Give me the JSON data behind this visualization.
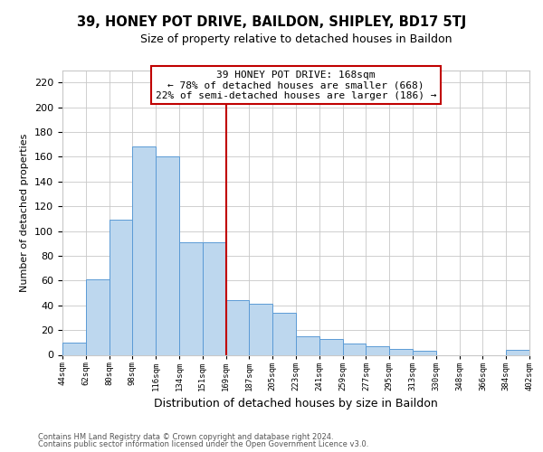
{
  "title": "39, HONEY POT DRIVE, BAILDON, SHIPLEY, BD17 5TJ",
  "subtitle": "Size of property relative to detached houses in Baildon",
  "xlabel": "Distribution of detached houses by size in Baildon",
  "ylabel": "Number of detached properties",
  "footnote1": "Contains HM Land Registry data © Crown copyright and database right 2024.",
  "footnote2": "Contains public sector information licensed under the Open Government Licence v3.0.",
  "bar_labels": [
    "44sqm",
    "62sqm",
    "80sqm",
    "98sqm",
    "116sqm",
    "134sqm",
    "151sqm",
    "169sqm",
    "187sqm",
    "205sqm",
    "223sqm",
    "241sqm",
    "259sqm",
    "277sqm",
    "295sqm",
    "313sqm",
    "330sqm",
    "348sqm",
    "366sqm",
    "384sqm",
    "402sqm"
  ],
  "bar_values": [
    10,
    61,
    109,
    168,
    160,
    91,
    91,
    44,
    41,
    34,
    15,
    13,
    9,
    7,
    5,
    3,
    0,
    0,
    0,
    4
  ],
  "bar_color": "#bdd7ee",
  "bar_edge_color": "#5b9bd5",
  "vline_index": 7,
  "vline_color": "#c00000",
  "annotation_line1": "39 HONEY POT DRIVE: 168sqm",
  "annotation_line2": "← 78% of detached houses are smaller (668)",
  "annotation_line3": "22% of semi-detached houses are larger (186) →",
  "annotation_box_color": "#ffffff",
  "annotation_box_edge": "#c00000",
  "ylim": [
    0,
    230
  ],
  "yticks": [
    0,
    20,
    40,
    60,
    80,
    100,
    120,
    140,
    160,
    180,
    200,
    220
  ],
  "background_color": "#ffffff",
  "grid_color": "#c8c8c8",
  "title_fontsize": 10.5,
  "subtitle_fontsize": 9
}
